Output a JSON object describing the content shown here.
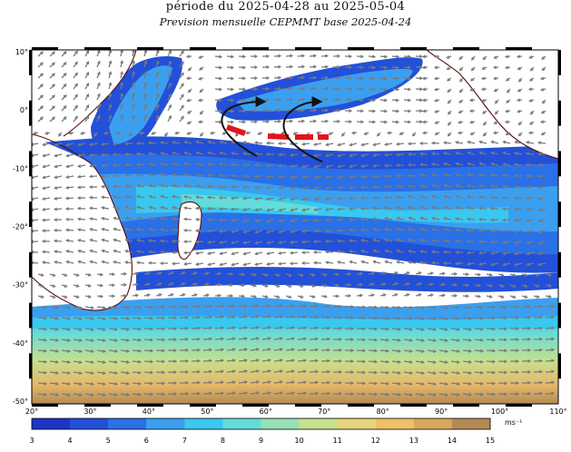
{
  "header": {
    "title": "période du 2025-04-28 au 2025-05-04",
    "subtitle": "Prevision mensuelle CEPMMT base 2025-04-24"
  },
  "map": {
    "lon_ticks": [
      "20°",
      "30°",
      "40°",
      "50°",
      "60°",
      "70°",
      "80°",
      "90°",
      "100°",
      "110°"
    ],
    "lat_ticks": [
      "10°",
      "0°",
      "-10°",
      "-20°",
      "-30°",
      "-40°",
      "-50°"
    ],
    "colorbar": {
      "labels": [
        "3",
        "4",
        "5",
        "6",
        "7",
        "8",
        "9",
        "10",
        "11",
        "12",
        "13",
        "14",
        "15"
      ],
      "unit": "ms⁻¹",
      "colors": [
        "#1e35c4",
        "#2350d8",
        "#2a70e6",
        "#3b9ff0",
        "#39c8ef",
        "#64dcd9",
        "#96e1b2",
        "#c7e08c",
        "#e5d47a",
        "#eec068",
        "#d9a75c",
        "#b48a54"
      ]
    },
    "annotations": {
      "dashed_line_color": "#e3141b",
      "arrow_color": "#111111"
    },
    "land_color": "#ffffff",
    "coast_color": "#5a0a0a"
  }
}
